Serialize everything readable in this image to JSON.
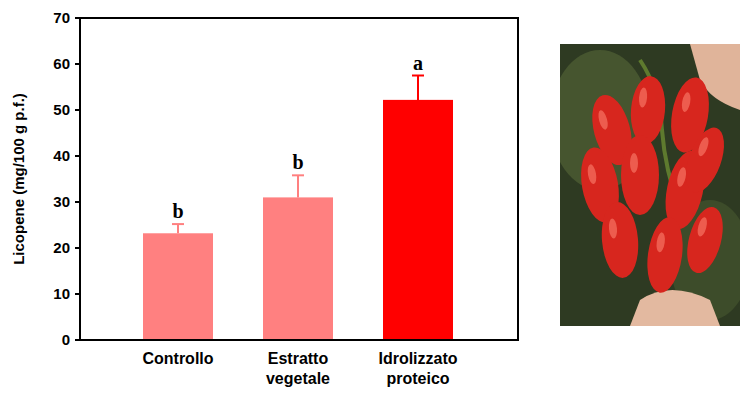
{
  "chart_data": {
    "type": "bar",
    "y_label": "Licopene (mg/100 g p.f.)",
    "categories": [
      "Controllo",
      "Estratto vegetale",
      "Idrolizzato proteico"
    ],
    "values": [
      23.2,
      31.0,
      52.2
    ],
    "errors": [
      2.0,
      4.8,
      5.3
    ],
    "annotations": [
      "b",
      "b",
      "a"
    ],
    "colors": [
      "#ff8080",
      "#ff8080",
      "#ff0000"
    ],
    "ylim": [
      0,
      70
    ],
    "yticks": [
      0,
      10,
      20,
      30,
      40,
      50,
      60,
      70
    ],
    "grid": false
  }
}
